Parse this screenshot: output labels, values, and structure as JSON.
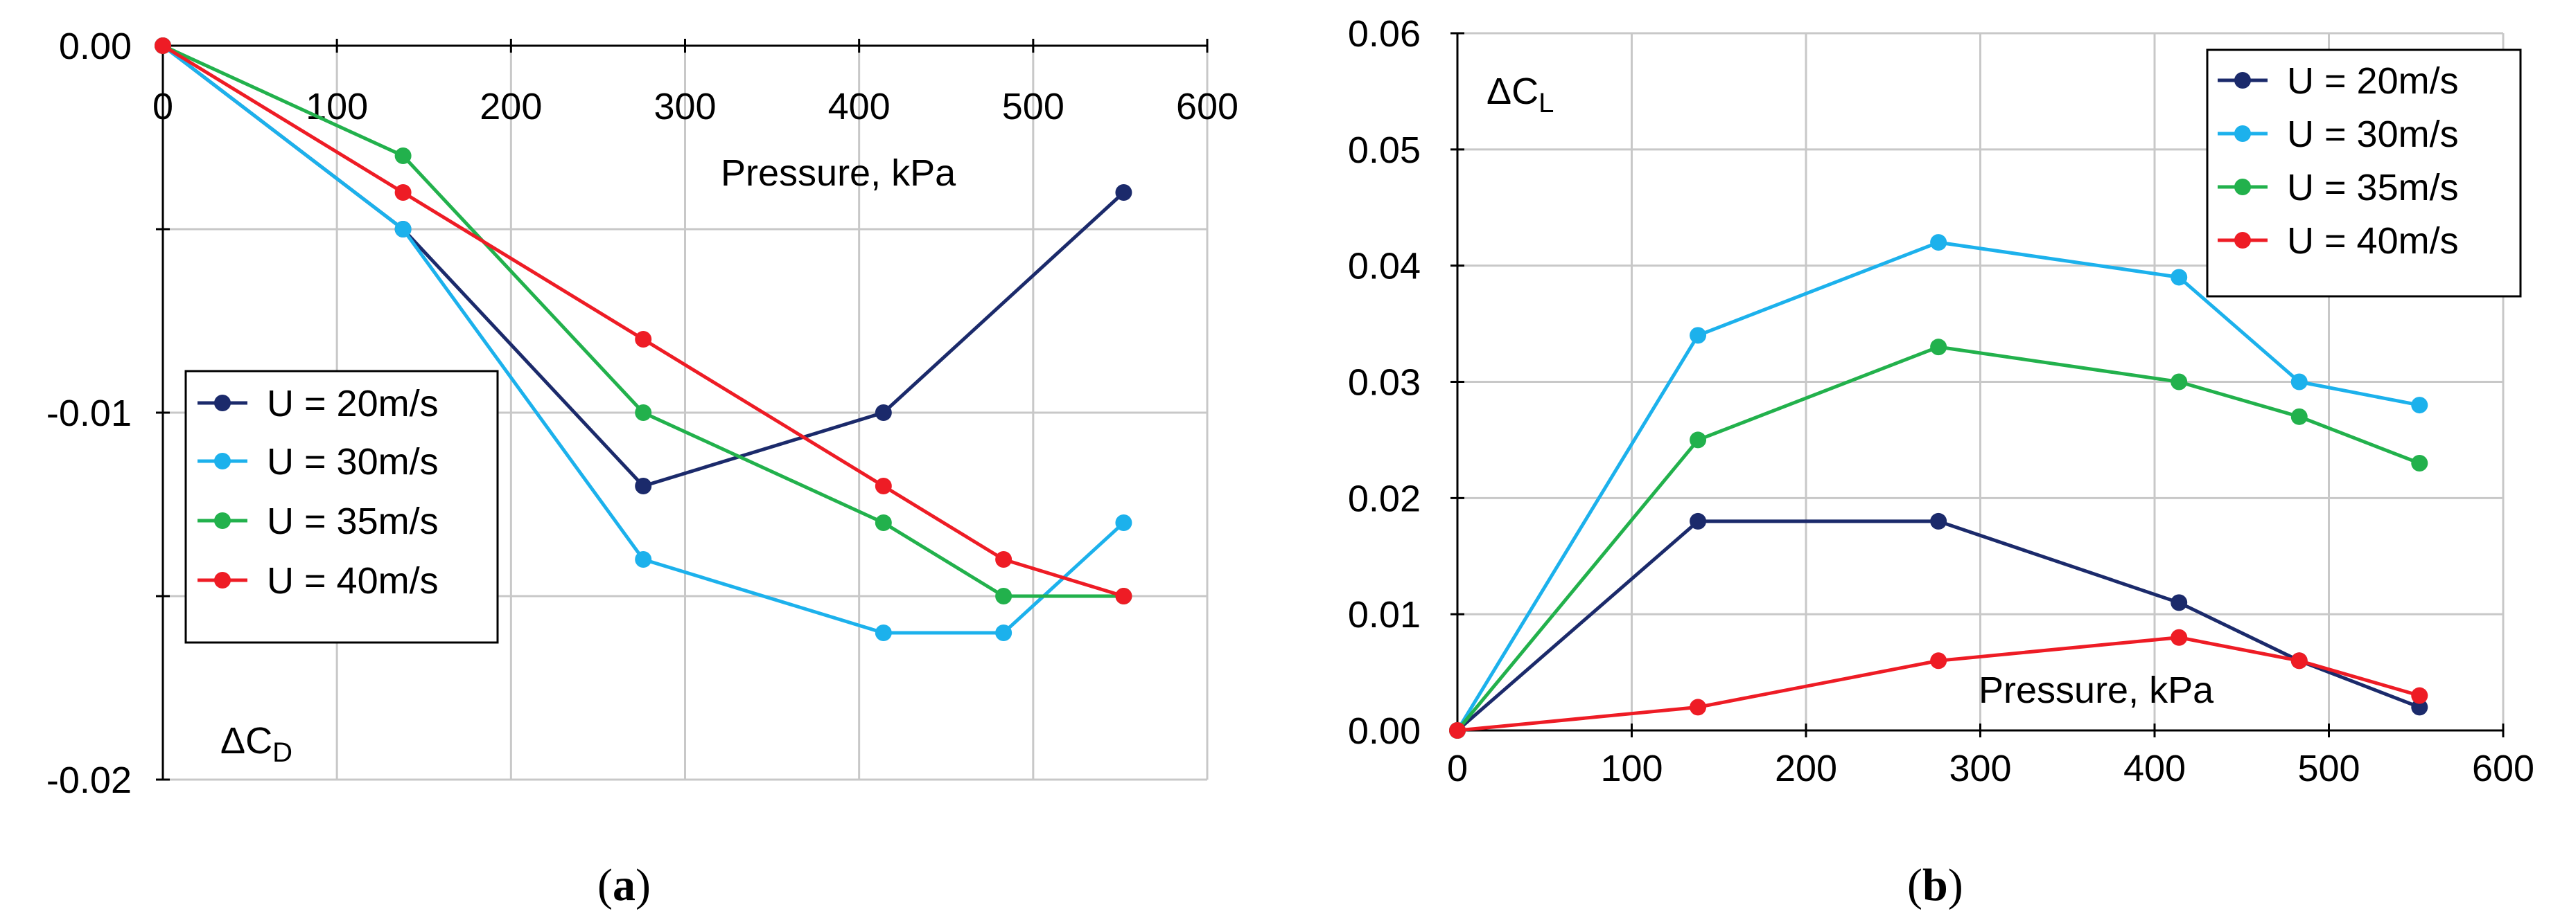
{
  "chart_data": [
    {
      "id": "a",
      "type": "line",
      "panel_label": {
        "open": "(",
        "letter": "a",
        "close": ")"
      },
      "xlabel": "Pressure, kPa",
      "ylabel": {
        "main": "ΔC",
        "sub": "D"
      },
      "xlim": [
        0,
        600
      ],
      "ylim": [
        -0.02,
        0.0
      ],
      "xticks": [
        0,
        100,
        200,
        300,
        400,
        500,
        600
      ],
      "xtick_labels": [
        "0",
        "100",
        "200",
        "300",
        "400",
        "500",
        "600"
      ],
      "ygrid": [
        0.0,
        -0.005,
        -0.01,
        -0.015,
        -0.02
      ],
      "yticks": [
        0.0,
        -0.01,
        -0.02
      ],
      "ytick_labels": [
        "0.00",
        "-0.01",
        "-0.02"
      ],
      "legend_position": "left-middle",
      "series": [
        {
          "name": "U = 20m/s",
          "color": "#1b2a6b",
          "points": [
            [
              0,
              0.0
            ],
            [
              138,
              -0.005
            ],
            [
              276,
              -0.012
            ],
            [
              414,
              -0.01
            ],
            [
              552,
              -0.004
            ]
          ]
        },
        {
          "name": "U = 30m/s",
          "color": "#1cb1ec",
          "points": [
            [
              0,
              0.0
            ],
            [
              138,
              -0.005
            ],
            [
              276,
              -0.014
            ],
            [
              414,
              -0.016
            ],
            [
              483,
              -0.016
            ],
            [
              552,
              -0.013
            ]
          ]
        },
        {
          "name": "U = 35m/s",
          "color": "#22b14c",
          "points": [
            [
              0,
              0.0
            ],
            [
              138,
              -0.003
            ],
            [
              276,
              -0.01
            ],
            [
              414,
              -0.013
            ],
            [
              483,
              -0.015
            ],
            [
              552,
              -0.015
            ]
          ]
        },
        {
          "name": "U = 40m/s",
          "color": "#ee1c25",
          "points": [
            [
              0,
              0.0
            ],
            [
              138,
              -0.004
            ],
            [
              276,
              -0.008
            ],
            [
              414,
              -0.012
            ],
            [
              483,
              -0.014
            ],
            [
              552,
              -0.015
            ]
          ]
        }
      ]
    },
    {
      "id": "b",
      "type": "line",
      "panel_label": {
        "open": "(",
        "letter": "b",
        "close": ")"
      },
      "xlabel": "Pressure, kPa",
      "ylabel": {
        "main": "ΔC",
        "sub": "L"
      },
      "xlim": [
        0,
        600
      ],
      "ylim": [
        0.0,
        0.06
      ],
      "xticks": [
        0,
        100,
        200,
        300,
        400,
        500,
        600
      ],
      "xtick_labels": [
        "0",
        "100",
        "200",
        "300",
        "400",
        "500",
        "600"
      ],
      "ygrid": [
        0.0,
        0.01,
        0.02,
        0.03,
        0.04,
        0.05,
        0.06
      ],
      "yticks": [
        0.0,
        0.01,
        0.02,
        0.03,
        0.04,
        0.05,
        0.06
      ],
      "ytick_labels": [
        "0.00",
        "0.01",
        "0.02",
        "0.03",
        "0.04",
        "0.05",
        "0.06"
      ],
      "legend_position": "top-right",
      "series": [
        {
          "name": "U = 20m/s",
          "color": "#1b2a6b",
          "points": [
            [
              0,
              0.0
            ],
            [
              138,
              0.018
            ],
            [
              276,
              0.018
            ],
            [
              414,
              0.011
            ],
            [
              483,
              0.006
            ],
            [
              552,
              0.002
            ]
          ]
        },
        {
          "name": "U = 30m/s",
          "color": "#1cb1ec",
          "points": [
            [
              0,
              0.0
            ],
            [
              138,
              0.034
            ],
            [
              276,
              0.042
            ],
            [
              414,
              0.039
            ],
            [
              483,
              0.03
            ],
            [
              552,
              0.028
            ]
          ]
        },
        {
          "name": "U = 35m/s",
          "color": "#22b14c",
          "points": [
            [
              0,
              0.0
            ],
            [
              138,
              0.025
            ],
            [
              276,
              0.033
            ],
            [
              414,
              0.03
            ],
            [
              483,
              0.027
            ],
            [
              552,
              0.023
            ]
          ]
        },
        {
          "name": "U = 40m/s",
          "color": "#ee1c25",
          "points": [
            [
              0,
              0.0
            ],
            [
              138,
              0.002
            ],
            [
              276,
              0.006
            ],
            [
              414,
              0.008
            ],
            [
              483,
              0.006
            ],
            [
              552,
              0.003
            ]
          ]
        }
      ]
    }
  ]
}
